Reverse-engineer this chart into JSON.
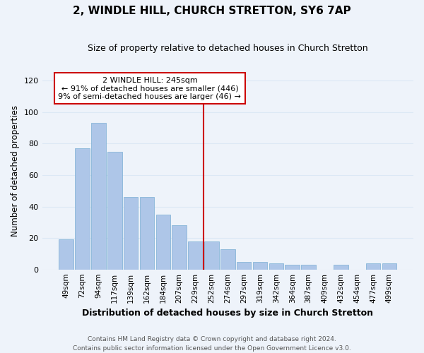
{
  "title": "2, WINDLE HILL, CHURCH STRETTON, SY6 7AP",
  "subtitle": "Size of property relative to detached houses in Church Stretton",
  "xlabel": "Distribution of detached houses by size in Church Stretton",
  "ylabel": "Number of detached properties",
  "footer_line1": "Contains HM Land Registry data © Crown copyright and database right 2024.",
  "footer_line2": "Contains public sector information licensed under the Open Government Licence v3.0.",
  "categories": [
    "49sqm",
    "72sqm",
    "94sqm",
    "117sqm",
    "139sqm",
    "162sqm",
    "184sqm",
    "207sqm",
    "229sqm",
    "252sqm",
    "274sqm",
    "297sqm",
    "319sqm",
    "342sqm",
    "364sqm",
    "387sqm",
    "409sqm",
    "432sqm",
    "454sqm",
    "477sqm",
    "499sqm"
  ],
  "values": [
    19,
    77,
    93,
    75,
    46,
    46,
    35,
    28,
    18,
    18,
    13,
    5,
    5,
    4,
    3,
    3,
    0,
    3,
    0,
    4,
    4
  ],
  "bar_color": "#aec6e8",
  "bar_edge_color": "#7aafd4",
  "property_label": "2 WINDLE HILL: 245sqm",
  "annotation_line1": "← 91% of detached houses are smaller (446)",
  "annotation_line2": "9% of semi-detached houses are larger (46) →",
  "vline_color": "#cc0000",
  "vline_x_pos": 8.5,
  "annotation_box_color": "#ffffff",
  "annotation_box_edge": "#cc0000",
  "grid_color": "#dce8f5",
  "background_color": "#eef3fa",
  "ylim": [
    0,
    125
  ],
  "yticks": [
    0,
    20,
    40,
    60,
    80,
    100,
    120
  ]
}
